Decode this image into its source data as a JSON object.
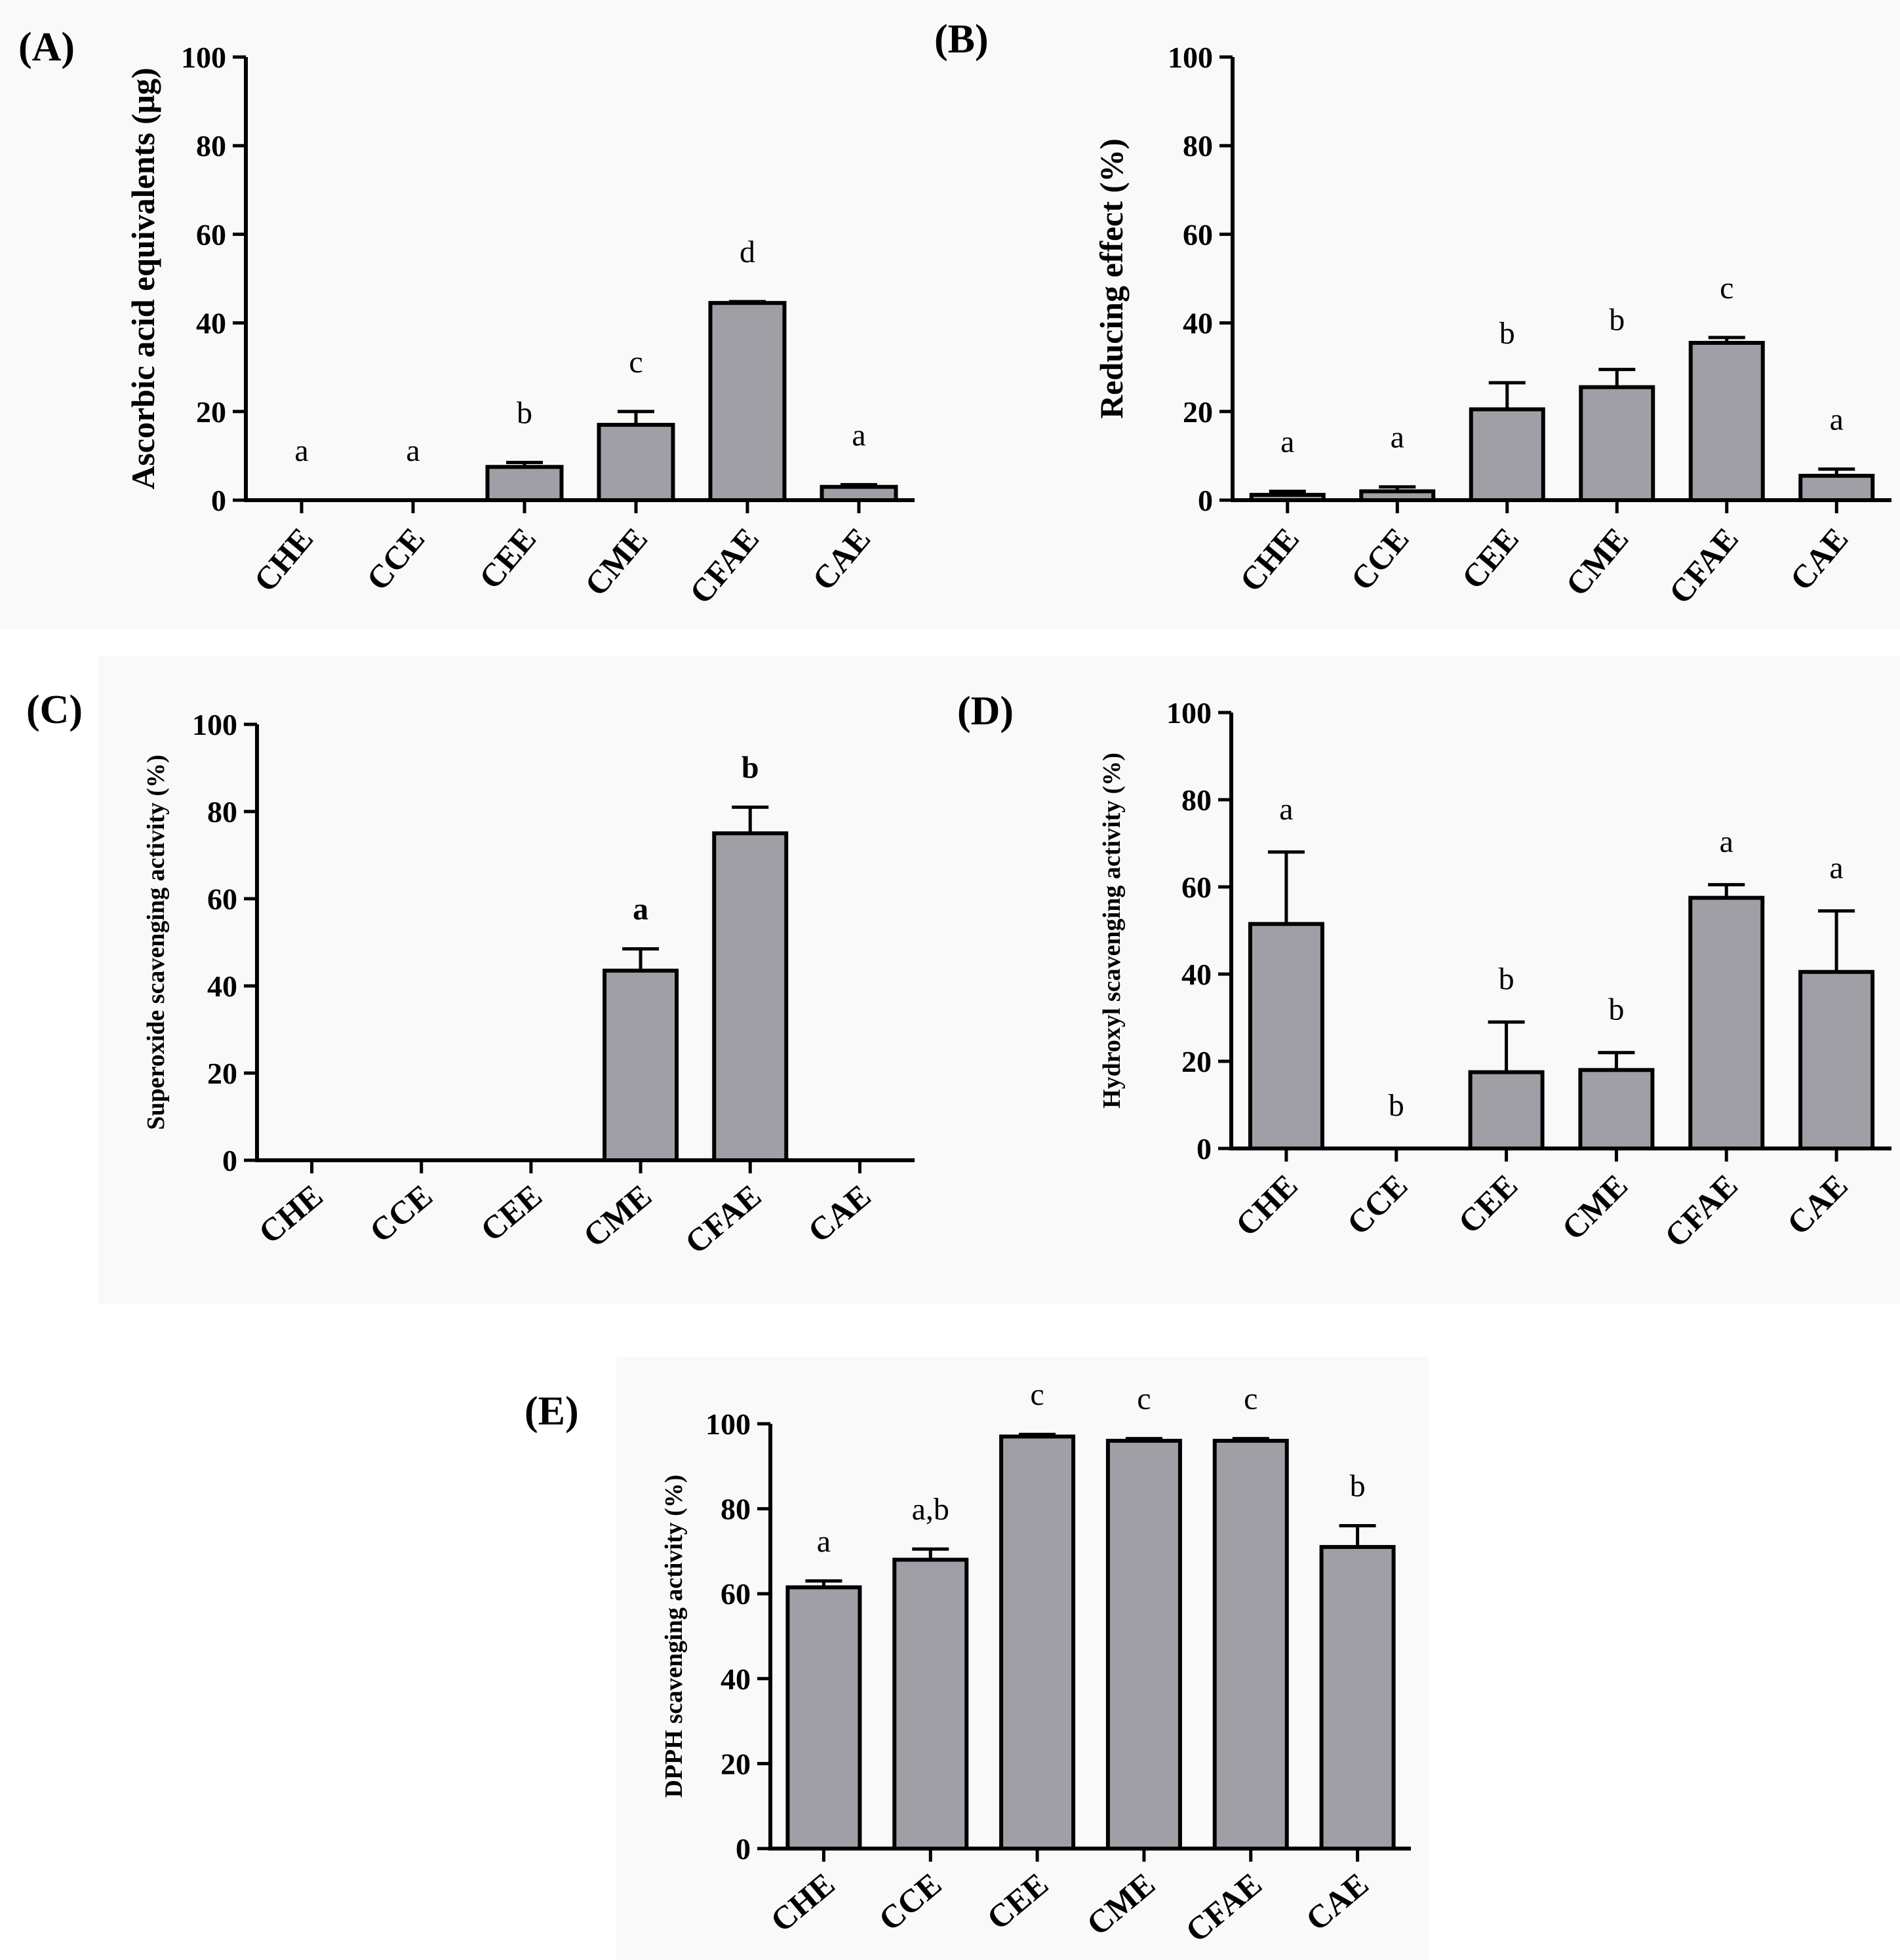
{
  "chart_data": [
    {
      "type": "bar",
      "panel_label": "(A)",
      "ylabel": "Ascorbic acid equivalents (μg)",
      "ylim": [
        0,
        100
      ],
      "yticks": [
        "0",
        "20",
        "40",
        "60",
        "80",
        "100"
      ],
      "categories": [
        "CHE",
        "CCE",
        "CEE",
        "CME",
        "CFAE",
        "CAE"
      ],
      "values": [
        0,
        0,
        7.5,
        17,
        44.5,
        3
      ],
      "errors": [
        0,
        0,
        1,
        3,
        0.3,
        0.5
      ],
      "letters": [
        "a",
        "a",
        "b",
        "c",
        "d",
        "a"
      ],
      "letters_bold": false
    },
    {
      "type": "bar",
      "panel_label": "(B)",
      "ylabel": "Reducing effect (%)",
      "ylim": [
        0,
        100
      ],
      "yticks": [
        "0",
        "20",
        "40",
        "60",
        "80",
        "100"
      ],
      "categories": [
        "CHE",
        "CCE",
        "CEE",
        "CME",
        "CFAE",
        "CAE"
      ],
      "values": [
        1.2,
        2,
        20.5,
        25.5,
        35.5,
        5.5
      ],
      "errors": [
        0.8,
        1,
        6,
        4,
        1.2,
        1.5
      ],
      "letters": [
        "a",
        "a",
        "b",
        "b",
        "c",
        "a"
      ],
      "letters_bold": false
    },
    {
      "type": "bar",
      "panel_label": "(C)",
      "ylabel": "Superoxide scavenging activity (%)",
      "ylim": [
        0,
        100
      ],
      "yticks": [
        "0",
        "20",
        "40",
        "60",
        "80",
        "100"
      ],
      "categories": [
        "CHE",
        "CCE",
        "CEE",
        "CME",
        "CFAE",
        "CAE"
      ],
      "values": [
        0,
        0,
        0,
        43.5,
        75,
        0
      ],
      "errors": [
        0,
        0,
        0,
        5,
        6,
        0
      ],
      "letters": [
        "",
        "",
        "",
        "a",
        "b",
        ""
      ],
      "letters_bold": true
    },
    {
      "type": "bar",
      "panel_label": "(D)",
      "ylabel": "Hydroxyl scavenging activity (%)",
      "ylim": [
        0,
        100
      ],
      "yticks": [
        "0",
        "20",
        "40",
        "60",
        "80",
        "100"
      ],
      "categories": [
        "CHE",
        "CCE",
        "CEE",
        "CME",
        "CFAE",
        "CAE"
      ],
      "values": [
        51.5,
        0,
        17.5,
        18,
        57.5,
        40.5
      ],
      "errors": [
        16.5,
        0,
        11.5,
        4,
        3,
        14
      ],
      "letters": [
        "a",
        "b",
        "b",
        "b",
        "a",
        "a"
      ],
      "letters_bold": false
    },
    {
      "type": "bar",
      "panel_label": "(E)",
      "ylabel": "DPPH scavenging activity (%)",
      "ylim": [
        0,
        100
      ],
      "yticks": [
        "0",
        "20",
        "40",
        "60",
        "80",
        "100"
      ],
      "categories": [
        "CHE",
        "CCE",
        "CEE",
        "CME",
        "CFAE",
        "CAE"
      ],
      "values": [
        61.5,
        68,
        97,
        96,
        96,
        71
      ],
      "errors": [
        1.5,
        2.5,
        0.5,
        0.5,
        0.5,
        5
      ],
      "letters": [
        "a",
        "a,b",
        "c",
        "c",
        "c",
        "b"
      ],
      "letters_bold": false
    }
  ]
}
